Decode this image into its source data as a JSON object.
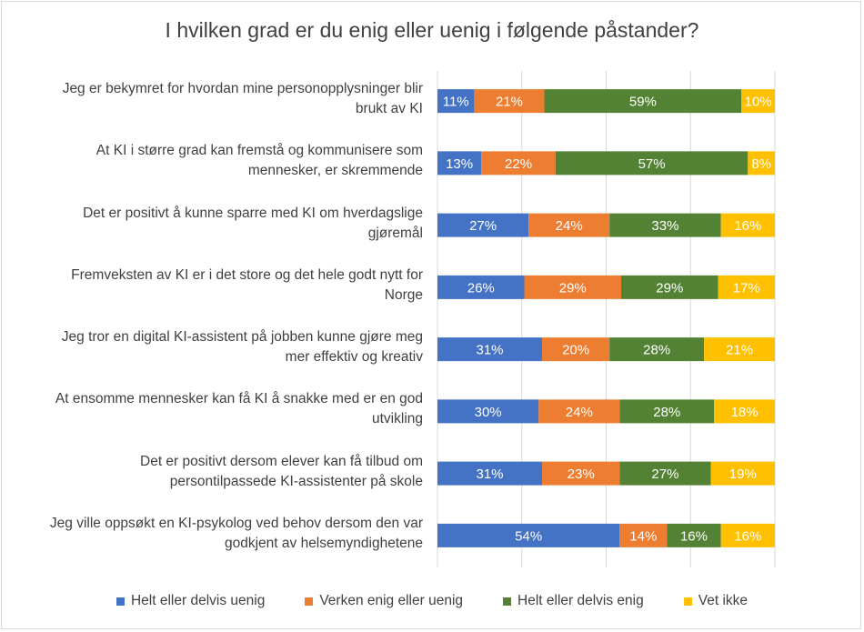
{
  "chart_data": {
    "type": "bar",
    "orientation": "horizontal",
    "stacked": "percent",
    "title": "I hvilken grad er du enig eller uenig i følgende påstander?",
    "categories": [
      "Jeg er bekymret for hvordan mine personopplysninger blir brukt av KI",
      "At KI i større grad kan fremstå og kommunisere som mennesker, er skremmende",
      "Det er positivt å kunne sparre med KI om hverdagslige gjøremål",
      "Fremveksten av KI er i det store og det hele godt nytt for Norge",
      "Jeg tror en digital KI-assistent på jobben kunne gjøre meg mer effektiv og kreativ",
      "At ensomme mennesker kan få KI å snakke med er en god utvikling",
      "Det er positivt dersom elever kan få tilbud om persontilpassede KI-assistenter på skole",
      "Jeg ville oppsøkt en KI-psykolog ved behov dersom den var godkjent av helsemyndighetene"
    ],
    "label_lines": [
      [
        "Jeg er bekymret for hvordan mine personopplysninger blir",
        "brukt av KI"
      ],
      [
        "At KI i større grad kan fremstå og kommunisere som",
        "mennesker, er skremmende"
      ],
      [
        "Det er positivt å kunne sparre med KI om hverdagslige",
        "gjøremål"
      ],
      [
        "Fremveksten av KI er i det store og det hele godt nytt for",
        "Norge"
      ],
      [
        "Jeg tror en digital KI-assistent på jobben kunne gjøre meg",
        "mer effektiv og kreativ"
      ],
      [
        "At ensomme mennesker kan få KI å snakke med er en god",
        "utvikling"
      ],
      [
        "Det er positivt dersom elever kan få tilbud om",
        "persontilpassede KI-assistenter på skole"
      ],
      [
        "Jeg ville oppsøkt en KI-psykolog ved behov dersom den var",
        "godkjent av helsemyndighetene"
      ]
    ],
    "series": [
      {
        "name": "Helt eller delvis uenig",
        "color": "#4472C4",
        "values": [
          11,
          13,
          27,
          26,
          31,
          30,
          31,
          54
        ]
      },
      {
        "name": "Verken enig eller uenig",
        "color": "#ED7D31",
        "values": [
          21,
          22,
          24,
          29,
          20,
          24,
          23,
          14
        ]
      },
      {
        "name": "Helt eller delvis enig",
        "color": "#548235",
        "values": [
          59,
          57,
          33,
          29,
          28,
          28,
          27,
          16
        ]
      },
      {
        "name": "Vet ikke",
        "color": "#FFC000",
        "values": [
          10,
          8,
          16,
          17,
          21,
          18,
          19,
          16
        ]
      }
    ],
    "value_suffix": "%",
    "legend_position": "bottom",
    "xlim": [
      0,
      100
    ],
    "grid": true
  }
}
